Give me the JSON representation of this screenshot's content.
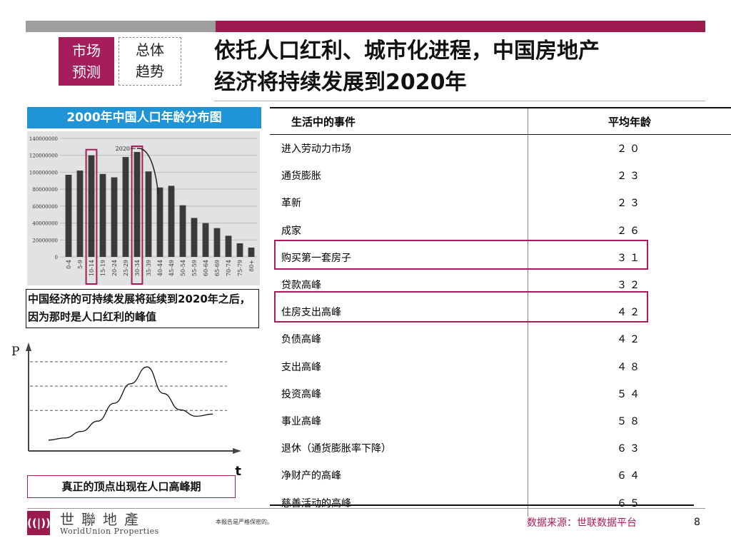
{
  "colors": {
    "accent": "#a51d5a",
    "title_blue": "#1f95d7",
    "bar": "#3a3a3a",
    "grey_bar": "#9e9e9e"
  },
  "tags": {
    "market_line1": "市场",
    "market_line2": "预测",
    "overall_line1": "总体",
    "overall_line2": "趋势"
  },
  "headline": {
    "line1": "依托人口红利、城市化进程，中国房地产",
    "line2": "经济将持续发展到2020年"
  },
  "chart_title": "2000年中国人口年龄分布图",
  "chart_data": [
    {
      "type": "bar",
      "categories": [
        "0-4",
        "5-9",
        "10-14",
        "15-19",
        "20-24",
        "25-29",
        "30-34",
        "35-39",
        "40-44",
        "45-49",
        "50-54",
        "55-59",
        "60-64",
        "65-69",
        "70-74",
        "75-79",
        "80+"
      ],
      "values": [
        97000000,
        102000000,
        120000000,
        98000000,
        94000000,
        118000000,
        124000000,
        101000000,
        82000000,
        84000000,
        61000000,
        46000000,
        40000000,
        34000000,
        25000000,
        16000000,
        11000000
      ],
      "yticks": [
        "140000000",
        "120000000",
        "100000000",
        "80000000",
        "60000000",
        "40000000",
        "20000000",
        "0"
      ],
      "ylim": [
        0,
        140000000
      ],
      "annotation": "2020",
      "highlighted_categories": [
        "10-14",
        "30-34"
      ]
    },
    {
      "type": "line",
      "ylabel": "P",
      "xlabel": "t",
      "x": [
        0,
        1,
        2,
        3,
        4,
        5,
        6,
        7,
        8,
        9,
        10
      ],
      "y": [
        2,
        2.4,
        3.6,
        5.5,
        8.8,
        12.4,
        15.5,
        10.6,
        7.6,
        6.4,
        6.8
      ],
      "ylim": [
        0,
        20
      ],
      "grid": "horizontal dashed"
    }
  ],
  "caption_top": "中国经济的可持续发展将延续到2020年之后，因为那时是人口红利的峰值",
  "caption_bottom": "真正的顶点出现在人口高峰期",
  "table": {
    "headers": [
      "生活中的事件",
      "平均年龄"
    ],
    "rows": [
      {
        "event": "进入劳动力市场",
        "age": "２０"
      },
      {
        "event": "通货膨胀",
        "age": "２３"
      },
      {
        "event": "革新",
        "age": "２３"
      },
      {
        "event": "成家",
        "age": "２６"
      },
      {
        "event": "购买第一套房子",
        "age": "３１"
      },
      {
        "event": "贷款高峰",
        "age": "３２"
      },
      {
        "event": "住房支出高峰",
        "age": "４２"
      },
      {
        "event": "负债高峰",
        "age": "４２"
      },
      {
        "event": "支出高峰",
        "age": "４８"
      },
      {
        "event": "投资高峰",
        "age": "５４"
      },
      {
        "event": "事业高峰",
        "age": "５８"
      },
      {
        "event": "退休（通货膨胀率下降）",
        "age": "６３"
      },
      {
        "event": "净财产的高峰",
        "age": "６４"
      },
      {
        "event": "慈善活动的高峰",
        "age": "６５"
      }
    ]
  },
  "footer": {
    "logo_mark": "((|))",
    "logo_cn": "世聯地產",
    "logo_en": "WorldUnion Properties",
    "note": "本报告是严格保密的。",
    "source": "数据来源：世联数据平台",
    "page": "8"
  }
}
